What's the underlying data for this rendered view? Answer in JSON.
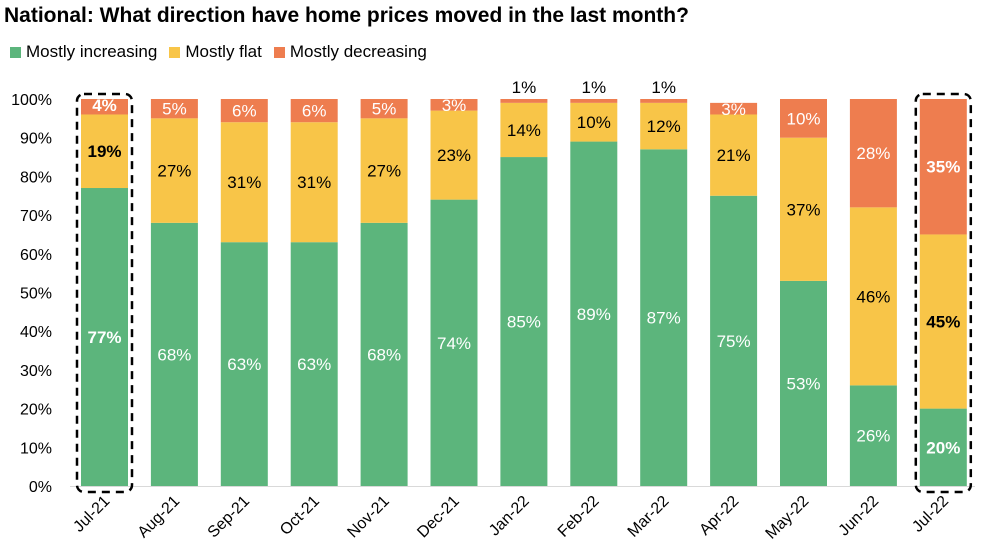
{
  "chart_data": {
    "type": "bar",
    "stacked": true,
    "title": "National: What direction have home prices moved in the last month?",
    "categories": [
      "Jul-21",
      "Aug-21",
      "Sep-21",
      "Oct-21",
      "Nov-21",
      "Dec-21",
      "Jan-22",
      "Feb-22",
      "Mar-22",
      "Apr-22",
      "May-22",
      "Jun-22",
      "Jul-22"
    ],
    "series": [
      {
        "name": "Mostly increasing",
        "color": "#5cb57c",
        "values": [
          77,
          68,
          63,
          63,
          68,
          74,
          85,
          89,
          87,
          75,
          53,
          26,
          20
        ]
      },
      {
        "name": "Mostly flat",
        "color": "#f8c548",
        "values": [
          19,
          27,
          31,
          31,
          27,
          23,
          14,
          10,
          12,
          21,
          37,
          46,
          45
        ]
      },
      {
        "name": "Mostly decreasing",
        "color": "#ee7d4f",
        "values": [
          4,
          5,
          6,
          6,
          5,
          3,
          1,
          1,
          1,
          3,
          10,
          28,
          35
        ]
      }
    ],
    "y_ticks": [
      "0%",
      "10%",
      "20%",
      "30%",
      "40%",
      "50%",
      "60%",
      "70%",
      "80%",
      "90%",
      "100%"
    ],
    "ylim": [
      0,
      100
    ],
    "legend_position": "top-left",
    "highlighted_categories": [
      "Jul-21",
      "Jul-22"
    ],
    "grid": false
  }
}
